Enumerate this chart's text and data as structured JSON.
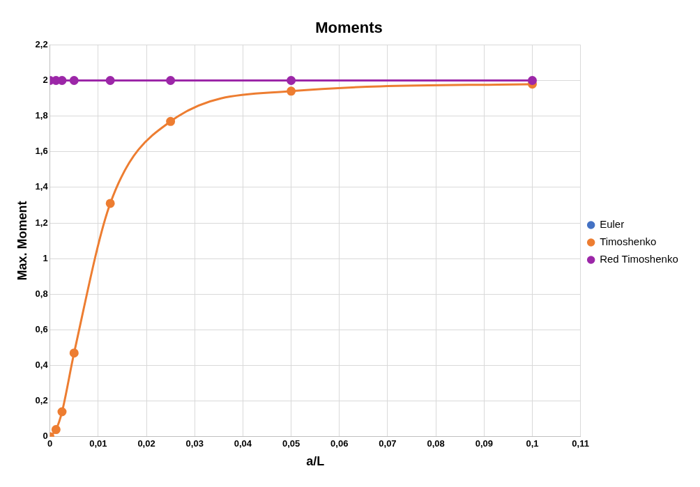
{
  "chart_data": {
    "type": "line",
    "title": "Moments",
    "xlabel": "a/L",
    "ylabel": "Max. Moment",
    "x": [
      0,
      0.00125,
      0.0025,
      0.005,
      0.0125,
      0.025,
      0.05,
      0.1
    ],
    "series": [
      {
        "name": "Euler",
        "color": "#4472c4",
        "values": [
          null,
          null,
          null,
          null,
          null,
          null,
          null,
          null
        ]
      },
      {
        "name": "Timoshenko",
        "color": "#ed7d31",
        "values": [
          0,
          0.04,
          0.14,
          0.47,
          1.31,
          1.77,
          1.94,
          1.98
        ]
      },
      {
        "name": "Red Timoshenko",
        "color": "#9c27a8",
        "values": [
          2,
          2,
          2,
          2,
          2,
          2,
          2,
          2
        ]
      }
    ],
    "xlim": [
      0,
      0.11
    ],
    "xticks": [
      0,
      {
        "value": 0.01,
        "label": "0,01"
      },
      {
        "value": 0.02,
        "label": "0,02"
      },
      {
        "value": 0.03,
        "label": "0,03"
      },
      {
        "value": 0.04,
        "label": "0,04"
      },
      {
        "value": 0.05,
        "label": "0,05"
      },
      {
        "value": 0.06,
        "label": "0,06"
      },
      {
        "value": 0.07,
        "label": "0,07"
      },
      {
        "value": 0.08,
        "label": "0,08"
      },
      {
        "value": 0.09,
        "label": "0,09"
      },
      {
        "value": 0.1,
        "label": "0,1"
      },
      {
        "value": 0.11,
        "label": "0,11"
      }
    ],
    "ylim": [
      0,
      2.2
    ],
    "yticks": [
      0,
      {
        "value": 0.2,
        "label": "0,2"
      },
      {
        "value": 0.4,
        "label": "0,4"
      },
      {
        "value": 0.6,
        "label": "0,6"
      },
      {
        "value": 0.8,
        "label": "0,8"
      },
      1,
      {
        "value": 1.2,
        "label": "1,2"
      },
      {
        "value": 1.4,
        "label": "1,4"
      },
      {
        "value": 1.6,
        "label": "1,6"
      },
      {
        "value": 1.8,
        "label": "1,8"
      },
      2,
      {
        "value": 2.2,
        "label": "2,2"
      }
    ],
    "grid": true,
    "legend": "right",
    "marker": "circle",
    "line_style": "solid"
  }
}
